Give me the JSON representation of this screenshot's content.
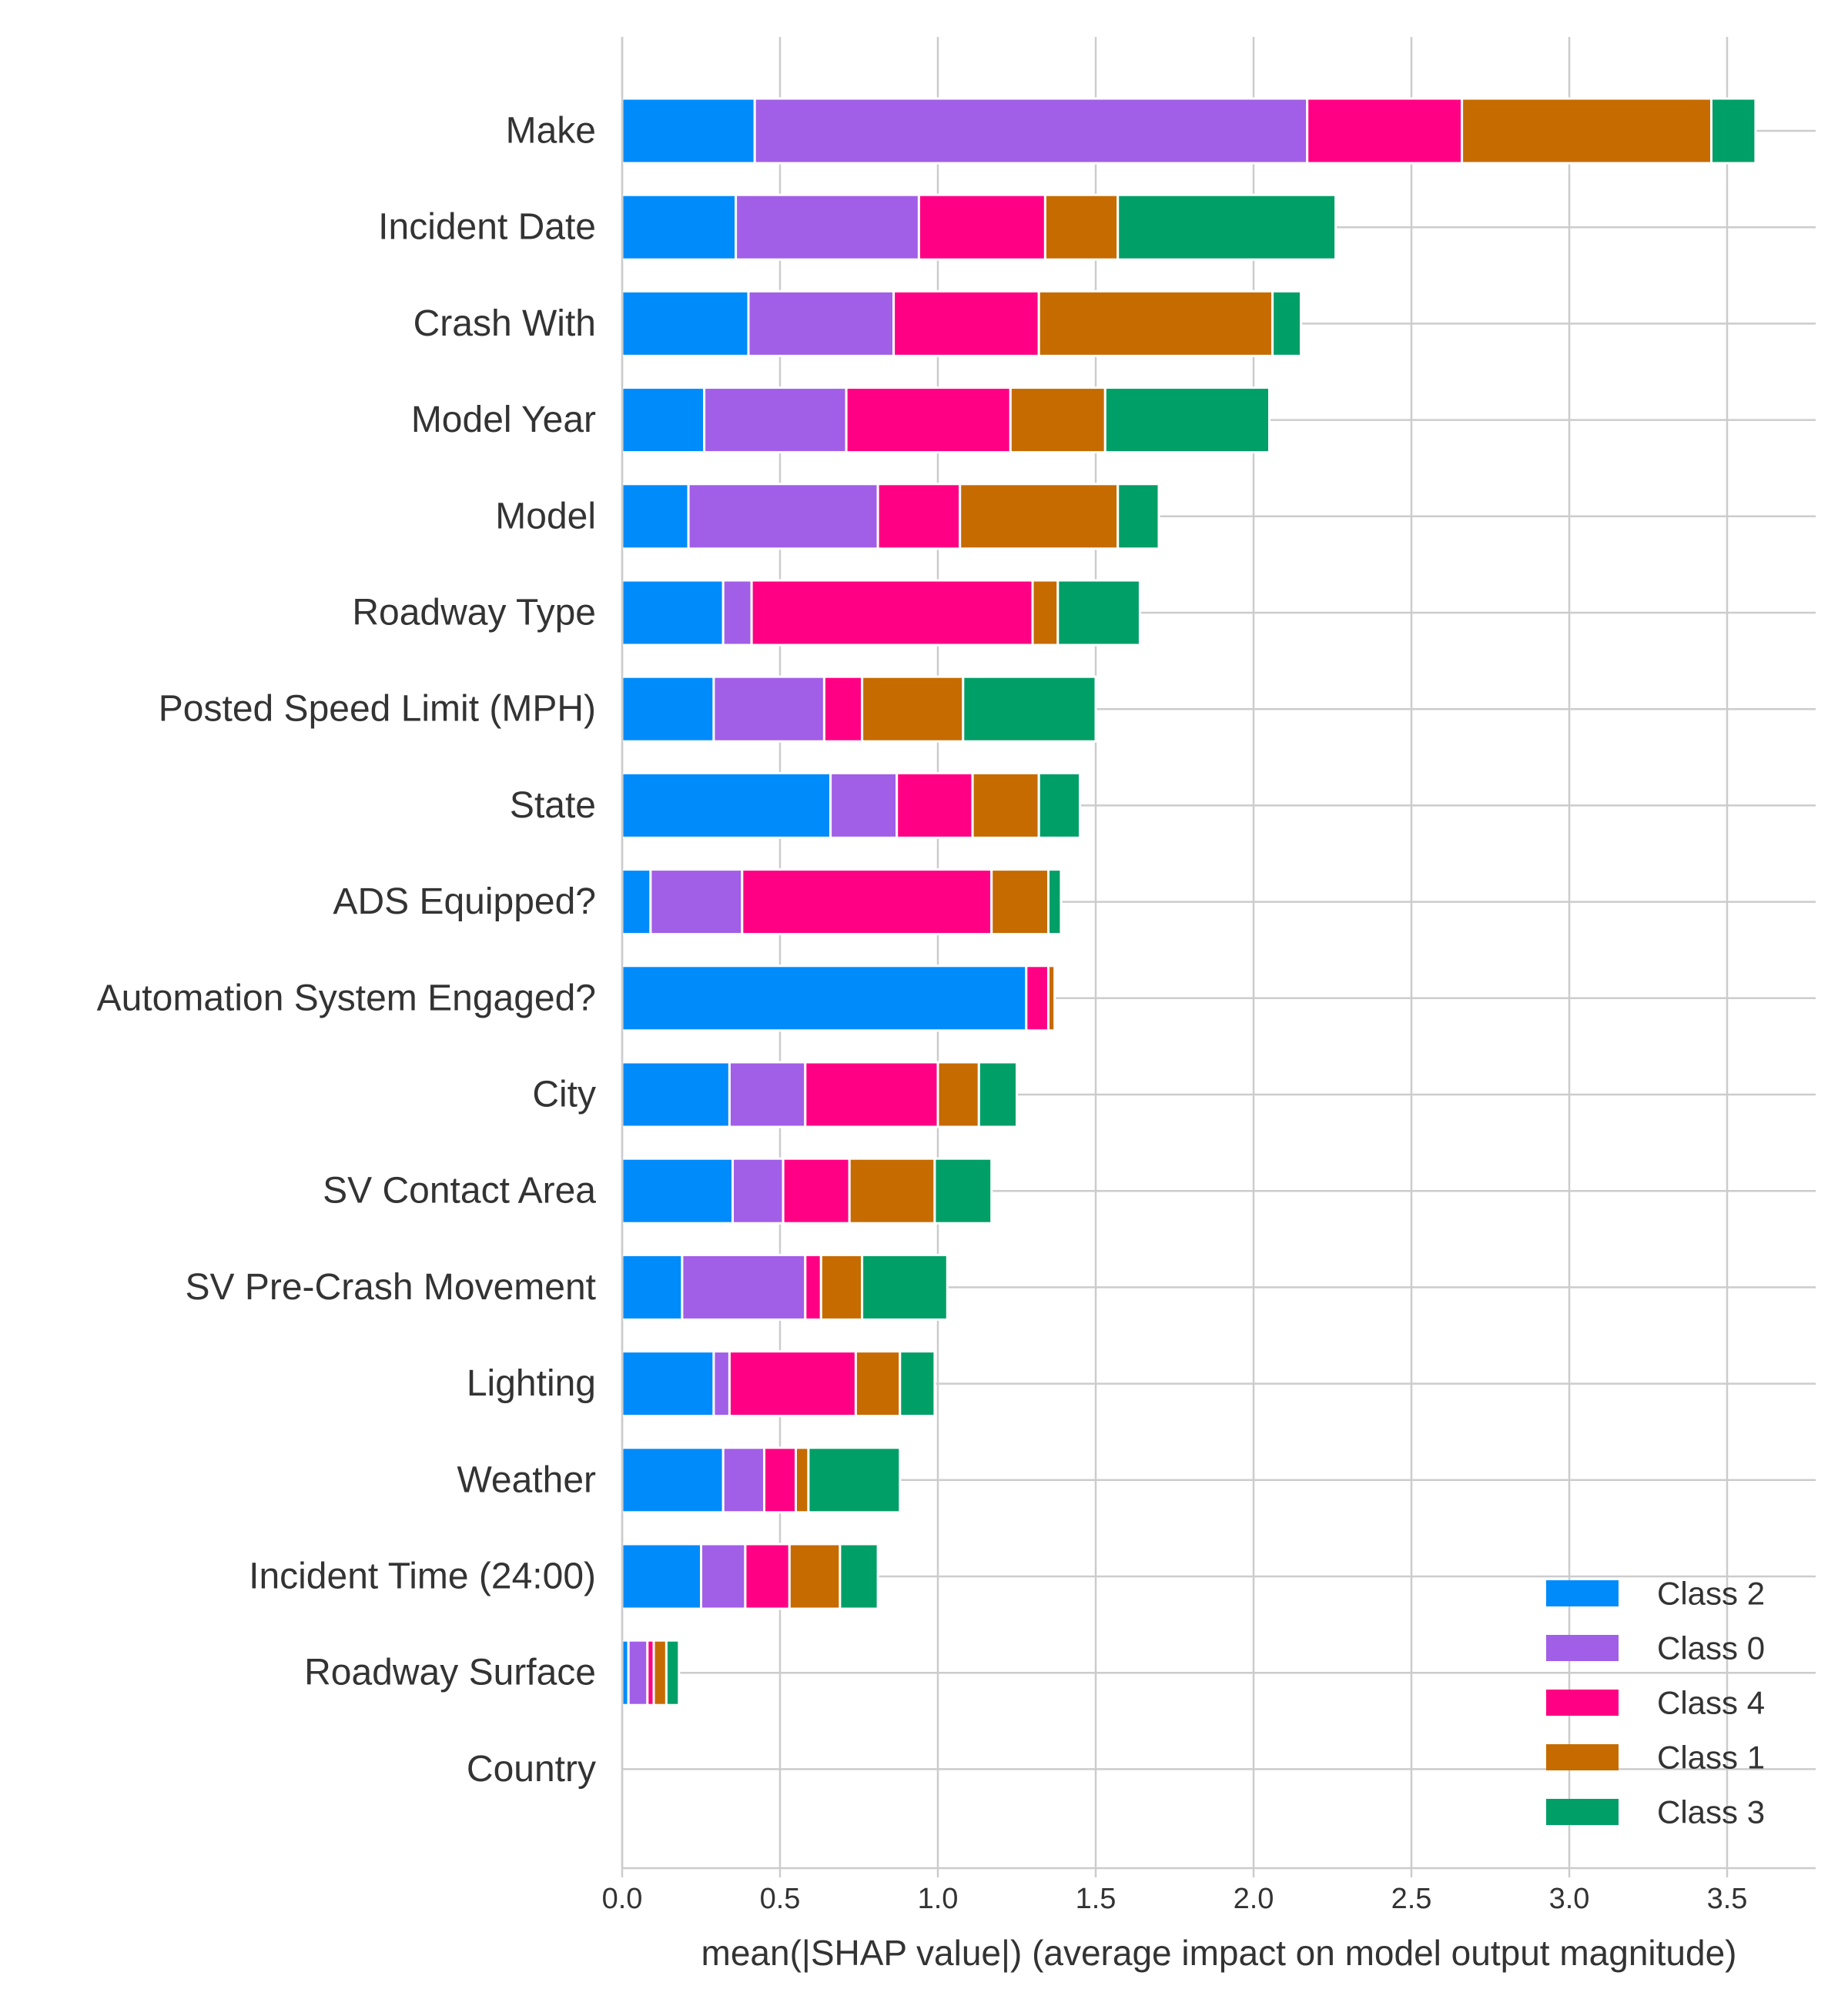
{
  "chart_data": {
    "type": "bar",
    "orientation": "horizontal",
    "stacked": true,
    "xlabel": "mean(|SHAP value|) (average impact on model output magnitude)",
    "ylabel": "",
    "title": "",
    "xlim": [
      0,
      3.78
    ],
    "xticks": [
      "0.0",
      "0.5",
      "1.0",
      "1.5",
      "2.0",
      "2.5",
      "3.0",
      "3.5"
    ],
    "grid": "on",
    "legend_position": "bottom-right",
    "categories": [
      "Make",
      "Incident Date",
      "Crash With",
      "Model Year",
      "Model",
      "Roadway Type",
      "Posted Speed Limit (MPH)",
      "State",
      "ADS Equipped?",
      "Automation System Engaged?",
      "City",
      "SV Contact Area",
      "SV Pre-Crash Movement",
      "Lighting",
      "Weather",
      "Incident Time (24:00)",
      "Roadway Surface",
      "Country"
    ],
    "series": [
      {
        "name": "Class 2",
        "color": "#008bfb",
        "values": [
          0.42,
          0.36,
          0.4,
          0.26,
          0.21,
          0.32,
          0.29,
          0.66,
          0.09,
          1.28,
          0.34,
          0.35,
          0.19,
          0.29,
          0.32,
          0.25,
          0.02,
          0.0
        ]
      },
      {
        "name": "Class 0",
        "color": "#a15ee7",
        "values": [
          1.75,
          0.58,
          0.46,
          0.45,
          0.6,
          0.09,
          0.35,
          0.21,
          0.29,
          0.0,
          0.24,
          0.16,
          0.39,
          0.05,
          0.13,
          0.14,
          0.06,
          0.0
        ]
      },
      {
        "name": "Class 4",
        "color": "#ff0085",
        "values": [
          0.49,
          0.4,
          0.46,
          0.52,
          0.26,
          0.89,
          0.12,
          0.24,
          0.79,
          0.07,
          0.42,
          0.21,
          0.05,
          0.4,
          0.1,
          0.14,
          0.02,
          0.0
        ]
      },
      {
        "name": "Class 1",
        "color": "#c66b00",
        "values": [
          0.79,
          0.23,
          0.74,
          0.3,
          0.5,
          0.08,
          0.32,
          0.21,
          0.18,
          0.02,
          0.13,
          0.27,
          0.13,
          0.14,
          0.04,
          0.16,
          0.04,
          0.0
        ]
      },
      {
        "name": "Class 3",
        "color": "#009f67",
        "values": [
          0.14,
          0.69,
          0.09,
          0.52,
          0.13,
          0.26,
          0.42,
          0.13,
          0.04,
          0.0,
          0.12,
          0.18,
          0.27,
          0.11,
          0.29,
          0.12,
          0.04,
          0.0
        ]
      }
    ]
  }
}
